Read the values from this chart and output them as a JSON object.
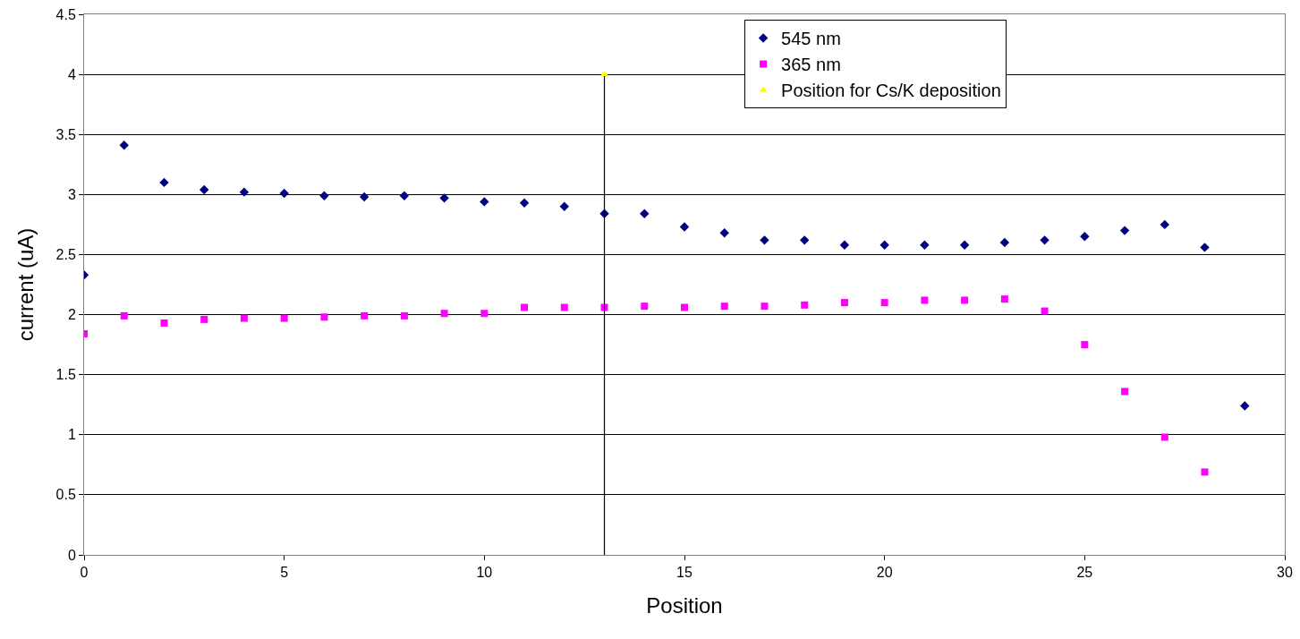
{
  "chart_data": {
    "type": "scatter",
    "xlabel": "Position",
    "ylabel": "current (uA)",
    "x": [
      0,
      1,
      2,
      3,
      4,
      5,
      6,
      7,
      8,
      9,
      10,
      11,
      12,
      13,
      14,
      15,
      16,
      17,
      18,
      19,
      20,
      21,
      22,
      23,
      24,
      25,
      26,
      27,
      28,
      29
    ],
    "series": [
      {
        "name": "545 nm",
        "color": "#000080",
        "marker": "diamond",
        "values": [
          2.33,
          3.41,
          3.1,
          3.04,
          3.02,
          3.01,
          2.99,
          2.98,
          2.99,
          2.97,
          2.94,
          2.93,
          2.9,
          2.84,
          2.84,
          2.73,
          2.68,
          2.62,
          2.62,
          2.58,
          2.58,
          2.58,
          2.58,
          2.6,
          2.62,
          2.65,
          2.7,
          2.75,
          2.56,
          1.24
        ]
      },
      {
        "name": "365 nm",
        "color": "#ff00ff",
        "marker": "square",
        "values": [
          1.84,
          1.99,
          1.93,
          1.96,
          1.97,
          1.97,
          1.98,
          1.99,
          1.99,
          2.01,
          2.01,
          2.06,
          2.06,
          2.06,
          2.07,
          2.06,
          2.07,
          2.07,
          2.08,
          2.1,
          2.1,
          2.12,
          2.12,
          2.13,
          2.03,
          1.75,
          1.36,
          0.98,
          0.69,
          null
        ]
      },
      {
        "name": "Position for Cs/K deposition",
        "color": "#ffff00",
        "marker": "triangle",
        "x": [
          13
        ],
        "values": [
          4
        ],
        "errors": [
          [
            0,
            4
          ]
        ]
      }
    ],
    "xlim": [
      0,
      30
    ],
    "xticks": [
      0,
      5,
      10,
      15,
      20,
      25,
      30
    ],
    "ylim": [
      0,
      4.5
    ],
    "yticks": [
      0,
      0.5,
      1,
      1.5,
      2,
      2.5,
      3,
      3.5,
      4,
      4.5
    ],
    "grid": "y",
    "legend": "top right"
  }
}
